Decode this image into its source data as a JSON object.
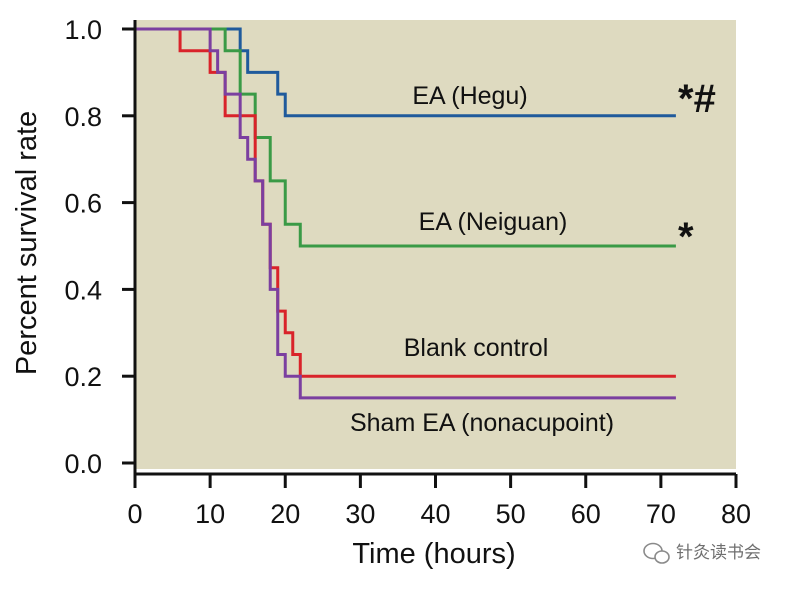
{
  "chart_data": {
    "type": "line",
    "step": true,
    "xlabel": "Time (hours)",
    "ylabel": "Percent survival rate",
    "xlim": [
      0,
      80
    ],
    "ylim": [
      0,
      1.0
    ],
    "x_ticks": [
      0,
      10,
      20,
      30,
      40,
      50,
      60,
      70,
      80
    ],
    "y_ticks": [
      "0.0",
      "0.2",
      "0.4",
      "0.6",
      "0.8",
      "1.0"
    ],
    "grid": false,
    "background_color": "#dedac0",
    "series": [
      {
        "name": "EA (Hegu)",
        "color": "#1f5a9c",
        "annotation": "*#",
        "x": [
          0,
          14,
          15,
          17,
          19,
          20,
          72
        ],
        "y": [
          1.0,
          0.95,
          0.9,
          0.9,
          0.85,
          0.8,
          0.8
        ]
      },
      {
        "name": "EA (Neiguan)",
        "color": "#3a9a46",
        "annotation": "*",
        "x": [
          0,
          12,
          14,
          16,
          18,
          20,
          22,
          72
        ],
        "y": [
          1.0,
          0.95,
          0.85,
          0.75,
          0.65,
          0.55,
          0.5,
          0.5
        ]
      },
      {
        "name": "Blank control",
        "color": "#d9232a",
        "annotation": "",
        "x": [
          0,
          6,
          10,
          12,
          16,
          17,
          18,
          19,
          20,
          21,
          22,
          72
        ],
        "y": [
          1.0,
          0.95,
          0.9,
          0.8,
          0.65,
          0.55,
          0.45,
          0.35,
          0.3,
          0.25,
          0.2,
          0.2
        ]
      },
      {
        "name": "Sham EA (nonacupoint)",
        "color": "#7b3fa0",
        "annotation": "",
        "x": [
          0,
          10,
          11,
          12,
          14,
          15,
          16,
          17,
          18,
          19,
          20,
          22,
          72
        ],
        "y": [
          1.0,
          0.95,
          0.9,
          0.85,
          0.75,
          0.7,
          0.65,
          0.55,
          0.4,
          0.25,
          0.2,
          0.15,
          0.15
        ]
      }
    ]
  },
  "watermark": {
    "text": "针灸读书会",
    "icon": "wechat-icon"
  }
}
